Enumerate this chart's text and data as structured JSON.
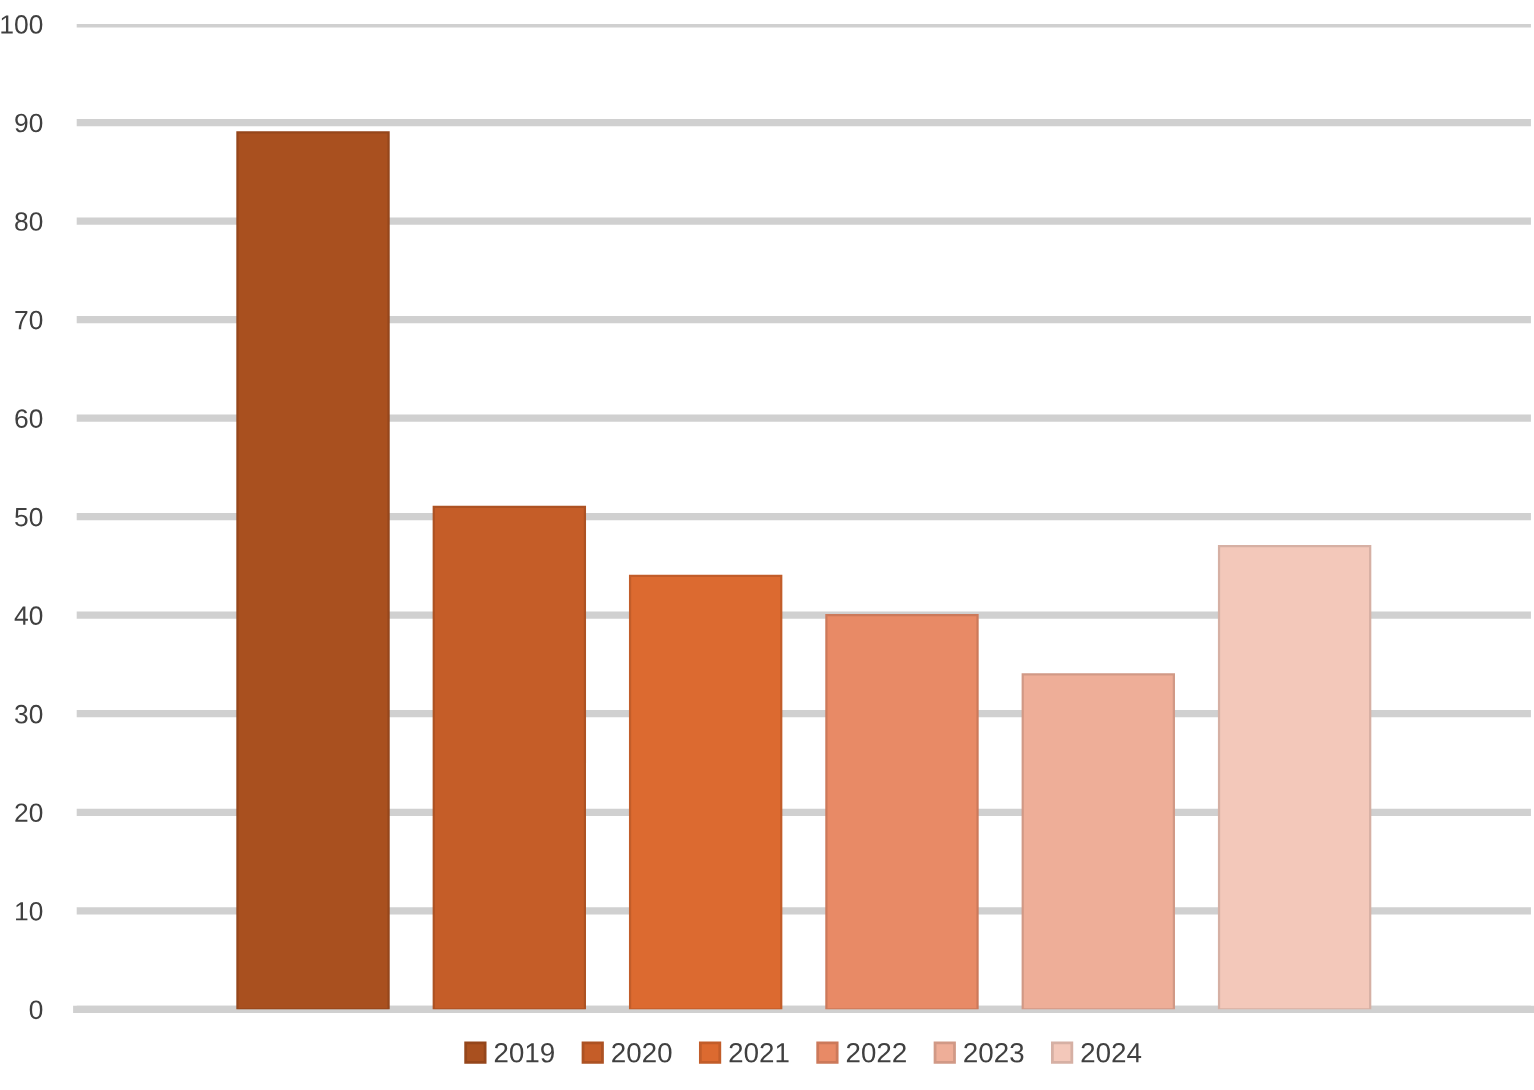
{
  "chart_data": {
    "type": "bar",
    "categories": [
      null
    ],
    "series": [
      {
        "name": "2019",
        "color": "#a9501f",
        "values": [
          89
        ]
      },
      {
        "name": "2020",
        "color": "#c55d28",
        "values": [
          51
        ]
      },
      {
        "name": "2021",
        "color": "#dc6a30",
        "values": [
          44
        ]
      },
      {
        "name": "2022",
        "color": "#e88a66",
        "values": [
          40
        ]
      },
      {
        "name": "2023",
        "color": "#eeae98",
        "values": [
          34
        ]
      },
      {
        "name": "2024",
        "color": "#f3c8ba",
        "values": [
          47
        ]
      }
    ],
    "ylim": [
      0,
      100
    ],
    "yticks": [
      0,
      10,
      20,
      30,
      40,
      50,
      60,
      70,
      80,
      90,
      100
    ],
    "grid": "y",
    "legend": "bottom"
  }
}
